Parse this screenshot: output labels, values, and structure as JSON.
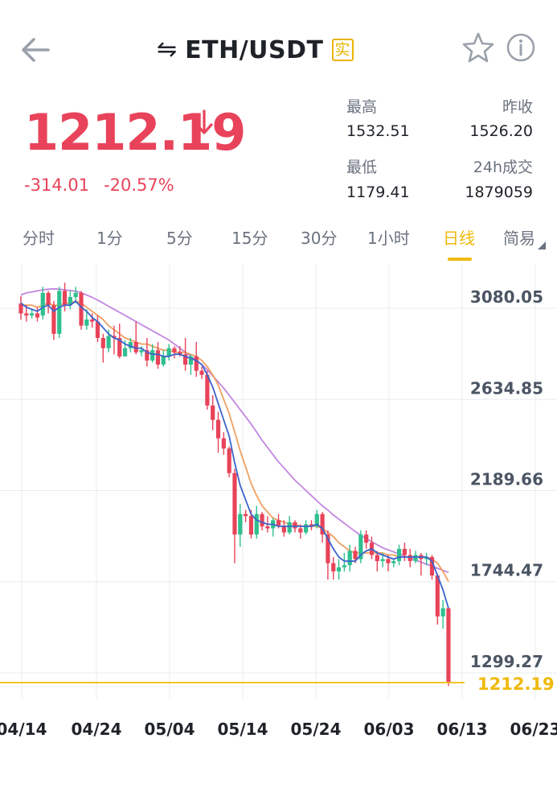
{
  "header": {
    "pair": "ETH/USDT",
    "badge": "实",
    "swap_glyph": "⇋"
  },
  "ticker": {
    "last_price": "1212.19",
    "change_abs": "-314.01",
    "change_pct": "-20.57%",
    "stats": {
      "high_label": "最高",
      "high_value": "1532.51",
      "prev_close_label": "昨收",
      "prev_close_value": "1526.20",
      "low_label": "最低",
      "low_value": "1179.41",
      "volume_label": "24h成交",
      "volume_value": "1879059"
    }
  },
  "tabs": [
    {
      "label": "分时"
    },
    {
      "label": "1分"
    },
    {
      "label": "5分"
    },
    {
      "label": "15分"
    },
    {
      "label": "30分"
    },
    {
      "label": "1小时"
    },
    {
      "label": "日线",
      "active": true
    },
    {
      "label": "简易"
    }
  ],
  "colors": {
    "up": "#2fbf8f",
    "down": "#e8435a",
    "ma_short": "#3b63c9",
    "ma_mid": "#f0a060",
    "ma_long": "#c386e0",
    "current_line": "#f0b90b",
    "grid": "#e9ecef"
  },
  "chart_data": {
    "type": "candlestick",
    "y_ticks": [
      "3080.05",
      "2634.85",
      "2189.66",
      "1744.47",
      "1299.27"
    ],
    "x_ticks": [
      "04/14",
      "04/24",
      "05/04",
      "05/14",
      "05/24",
      "06/03",
      "06/13",
      "06/23"
    ],
    "current_price_label": "1212.19",
    "current_price": 1212.19,
    "ylim": [
      1150,
      3120
    ],
    "start_date": "04/12",
    "candles": [
      [
        3048,
        3000,
        3085,
        2970
      ],
      [
        3000,
        2990,
        3040,
        2960
      ],
      [
        2990,
        3000,
        3020,
        2975
      ],
      [
        3000,
        2980,
        3030,
        2960
      ],
      [
        2990,
        3100,
        3130,
        2970
      ],
      [
        3100,
        3040,
        3110,
        3000
      ],
      [
        3040,
        2900,
        3060,
        2870
      ],
      [
        2900,
        3110,
        3130,
        2880
      ],
      [
        3110,
        3040,
        3150,
        3010
      ],
      [
        3040,
        3080,
        3110,
        3020
      ],
      [
        3080,
        3100,
        3130,
        3050
      ],
      [
        3100,
        2940,
        3110,
        2920
      ],
      [
        2940,
        2970,
        3020,
        2920
      ],
      [
        2970,
        2960,
        3000,
        2930
      ],
      [
        2960,
        2880,
        2990,
        2860
      ],
      [
        2880,
        2830,
        2900,
        2760
      ],
      [
        2830,
        2890,
        2920,
        2810
      ],
      [
        2890,
        2880,
        2940,
        2800
      ],
      [
        2880,
        2790,
        2950,
        2780
      ],
      [
        2790,
        2830,
        2870,
        2790
      ],
      [
        2830,
        2860,
        2880,
        2810
      ],
      [
        2860,
        2810,
        2960,
        2800
      ],
      [
        2810,
        2820,
        2840,
        2790
      ],
      [
        2820,
        2770,
        2880,
        2740
      ],
      [
        2770,
        2820,
        2850,
        2760
      ],
      [
        2820,
        2750,
        2860,
        2730
      ],
      [
        2750,
        2790,
        2820,
        2740
      ],
      [
        2790,
        2830,
        2850,
        2770
      ],
      [
        2830,
        2810,
        2840,
        2780
      ],
      [
        2810,
        2800,
        2840,
        2790
      ],
      [
        2800,
        2750,
        2880,
        2720
      ],
      [
        2750,
        2790,
        2800,
        2700
      ],
      [
        2790,
        2720,
        2860,
        2690
      ],
      [
        2720,
        2700,
        2740,
        2680
      ],
      [
        2700,
        2550,
        2720,
        2530
      ],
      [
        2550,
        2480,
        2600,
        2430
      ],
      [
        2480,
        2390,
        2520,
        2320
      ],
      [
        2390,
        2340,
        2420,
        2310
      ],
      [
        2340,
        2220,
        2350,
        2200
      ],
      [
        2220,
        1920,
        2240,
        1780
      ],
      [
        1920,
        2020,
        2070,
        1860
      ],
      [
        2020,
        2010,
        2040,
        1980
      ],
      [
        2010,
        1920,
        2040,
        1900
      ],
      [
        1920,
        2020,
        2060,
        1900
      ],
      [
        2020,
        1960,
        2030,
        1940
      ],
      [
        1960,
        1950,
        2010,
        1930
      ],
      [
        1950,
        1990,
        2000,
        1910
      ],
      [
        1990,
        1960,
        2020,
        1950
      ],
      [
        1960,
        1930,
        1990,
        1910
      ],
      [
        1930,
        1980,
        2010,
        1920
      ],
      [
        1980,
        1950,
        1990,
        1930
      ],
      [
        1950,
        1930,
        1970,
        1900
      ],
      [
        1930,
        1970,
        1990,
        1920
      ],
      [
        1970,
        1960,
        1990,
        1940
      ],
      [
        1960,
        2020,
        2040,
        1950
      ],
      [
        2020,
        1920,
        2030,
        1880
      ],
      [
        1920,
        1780,
        1940,
        1700
      ],
      [
        1780,
        1740,
        1810,
        1700
      ],
      [
        1740,
        1760,
        1800,
        1700
      ],
      [
        1760,
        1770,
        1830,
        1740
      ],
      [
        1770,
        1840,
        1870,
        1740
      ],
      [
        1840,
        1800,
        1860,
        1780
      ],
      [
        1800,
        1920,
        1940,
        1780
      ],
      [
        1920,
        1880,
        1940,
        1850
      ],
      [
        1880,
        1820,
        1910,
        1800
      ],
      [
        1820,
        1790,
        1840,
        1740
      ],
      [
        1790,
        1800,
        1830,
        1760
      ],
      [
        1800,
        1780,
        1820,
        1740
      ],
      [
        1780,
        1790,
        1800,
        1760
      ],
      [
        1790,
        1850,
        1870,
        1770
      ],
      [
        1850,
        1820,
        1880,
        1790
      ],
      [
        1820,
        1790,
        1850,
        1760
      ],
      [
        1790,
        1820,
        1840,
        1780
      ],
      [
        1820,
        1800,
        1830,
        1720
      ],
      [
        1800,
        1810,
        1830,
        1770
      ],
      [
        1810,
        1720,
        1820,
        1700
      ],
      [
        1720,
        1520,
        1730,
        1480
      ],
      [
        1520,
        1560,
        1600,
        1460
      ],
      [
        1560,
        1200,
        1560,
        1180
      ]
    ],
    "ma_short": [
      3050,
      3030,
      3020,
      3010,
      3030,
      3040,
      3010,
      3030,
      3040,
      3040,
      3060,
      3030,
      3010,
      2980,
      2960,
      2930,
      2900,
      2880,
      2870,
      2850,
      2840,
      2830,
      2830,
      2810,
      2800,
      2800,
      2790,
      2790,
      2800,
      2800,
      2790,
      2780,
      2770,
      2750,
      2700,
      2640,
      2560,
      2480,
      2400,
      2270,
      2160,
      2090,
      2020,
      1990,
      1980,
      1970,
      1970,
      1960,
      1960,
      1960,
      1960,
      1960,
      1960,
      1960,
      1970,
      1950,
      1900,
      1850,
      1810,
      1790,
      1790,
      1790,
      1820,
      1840,
      1850,
      1830,
      1820,
      1810,
      1800,
      1810,
      1810,
      1810,
      1810,
      1810,
      1810,
      1790,
      1720,
      1650,
      1560
    ],
    "ma_mid": [
      3040,
      3040,
      3040,
      3030,
      3040,
      3050,
      3040,
      3040,
      3050,
      3050,
      3060,
      3050,
      3030,
      3010,
      2990,
      2970,
      2940,
      2920,
      2900,
      2880,
      2870,
      2860,
      2850,
      2850,
      2840,
      2830,
      2820,
      2820,
      2810,
      2810,
      2810,
      2800,
      2790,
      2770,
      2740,
      2700,
      2650,
      2580,
      2510,
      2420,
      2330,
      2250,
      2170,
      2110,
      2060,
      2030,
      2000,
      1990,
      1980,
      1970,
      1970,
      1960,
      1960,
      1960,
      1960,
      1950,
      1930,
      1910,
      1880,
      1860,
      1840,
      1830,
      1830,
      1830,
      1830,
      1830,
      1830,
      1820,
      1820,
      1810,
      1810,
      1810,
      1810,
      1810,
      1810,
      1800,
      1780,
      1740,
      1690
    ],
    "ma_long": [
      3090,
      3100,
      3105,
      3110,
      3115,
      3118,
      3120,
      3118,
      3115,
      3112,
      3108,
      3100,
      3090,
      3078,
      3065,
      3050,
      3035,
      3020,
      3005,
      2990,
      2975,
      2960,
      2945,
      2930,
      2915,
      2900,
      2885,
      2870,
      2850,
      2830,
      2810,
      2790,
      2770,
      2750,
      2725,
      2695,
      2665,
      2635,
      2600,
      2565,
      2530,
      2495,
      2460,
      2420,
      2380,
      2345,
      2310,
      2275,
      2245,
      2215,
      2185,
      2160,
      2135,
      2110,
      2085,
      2060,
      2040,
      2015,
      1995,
      1975,
      1955,
      1935,
      1915,
      1900,
      1885,
      1870,
      1855,
      1845,
      1835,
      1825,
      1815,
      1805,
      1795,
      1785,
      1775,
      1765,
      1755,
      1745,
      1735
    ]
  }
}
